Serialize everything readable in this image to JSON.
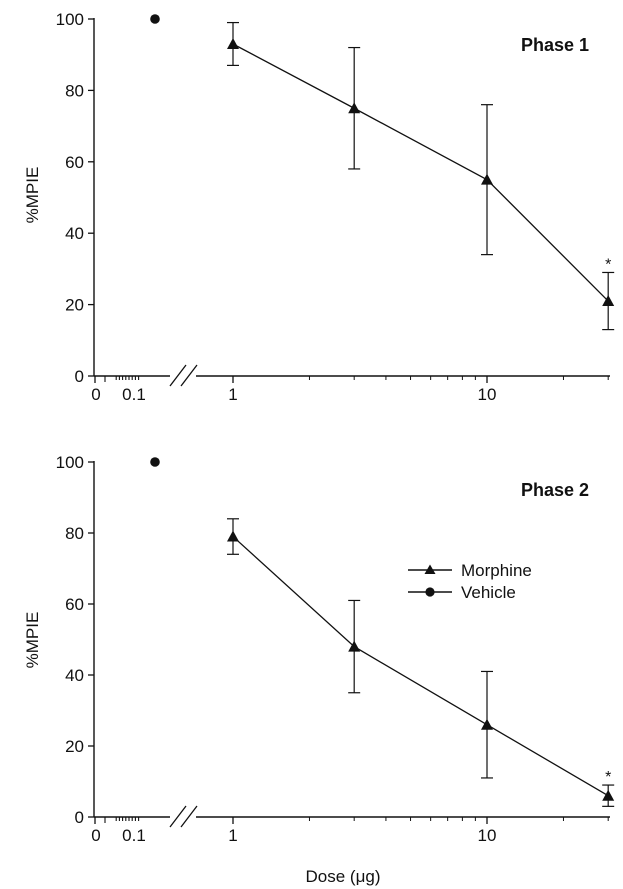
{
  "chart_data": [
    {
      "type": "line",
      "panel_label": "Phase 1",
      "ylabel": "%MPIE",
      "xlabel": "",
      "x_scale": "log",
      "x_axis_break": true,
      "xticks": [
        "0",
        "0.1",
        "1",
        "10"
      ],
      "yticks": [
        "0",
        "20",
        "40",
        "60",
        "80",
        "100"
      ],
      "ylim": [
        0,
        100
      ],
      "series": [
        {
          "name": "Morphine",
          "marker": "triangle",
          "x": [
            1,
            3,
            10,
            30
          ],
          "y": [
            93,
            75,
            55,
            21
          ],
          "error": [
            6,
            17,
            21,
            8
          ],
          "significance": [
            "",
            "",
            "",
            "*"
          ]
        },
        {
          "name": "Vehicle",
          "marker": "circle",
          "x": [
            0.2
          ],
          "y": [
            100
          ]
        }
      ]
    },
    {
      "type": "line",
      "panel_label": "Phase 2",
      "ylabel": "%MPIE",
      "xlabel": "Dose (μg)",
      "x_scale": "log",
      "x_axis_break": true,
      "xticks": [
        "0",
        "0.1",
        "1",
        "10"
      ],
      "yticks": [
        "0",
        "20",
        "40",
        "60",
        "80",
        "100"
      ],
      "ylim": [
        0,
        100
      ],
      "legend": {
        "position": "center-right",
        "entries": [
          "Morphine",
          "Vehicle"
        ]
      },
      "series": [
        {
          "name": "Morphine",
          "marker": "triangle",
          "x": [
            1,
            3,
            10,
            30
          ],
          "y": [
            79,
            48,
            26,
            6
          ],
          "error": [
            5,
            13,
            15,
            3
          ],
          "significance": [
            "",
            "",
            "",
            "*"
          ]
        },
        {
          "name": "Vehicle",
          "marker": "circle",
          "x": [
            0.2
          ],
          "y": [
            100
          ]
        }
      ]
    }
  ]
}
